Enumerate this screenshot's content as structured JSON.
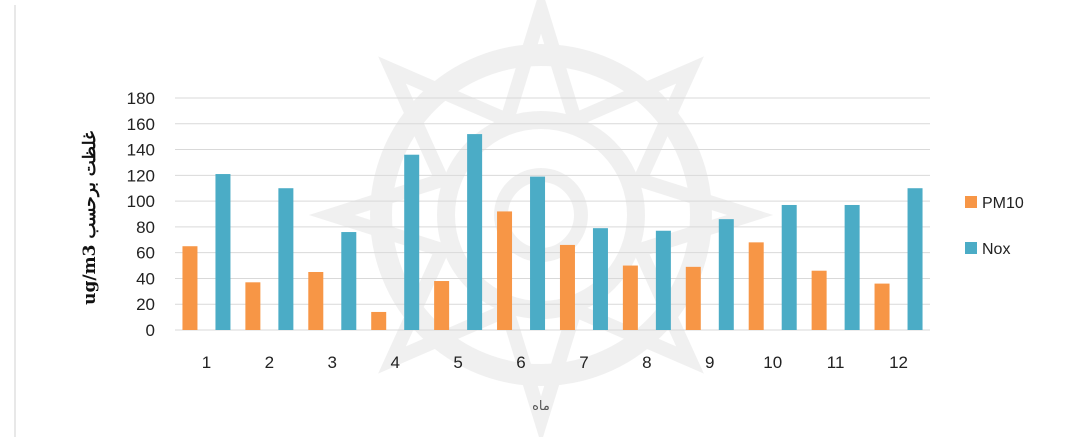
{
  "chart_data": {
    "type": "bar",
    "categories": [
      "1",
      "2",
      "3",
      "4",
      "5",
      "6",
      "7",
      "8",
      "9",
      "10",
      "11",
      "12"
    ],
    "series": [
      {
        "name": "PM10",
        "values": [
          65,
          37,
          45,
          14,
          38,
          92,
          66,
          50,
          49,
          68,
          46,
          36
        ],
        "color": "#F79646"
      },
      {
        "name": "Nox",
        "values": [
          121,
          110,
          76,
          136,
          152,
          119,
          79,
          77,
          86,
          97,
          97,
          110
        ],
        "color": "#4BACC6"
      }
    ],
    "yticks": [
      "0",
      "20",
      "40",
      "60",
      "80",
      "100",
      "120",
      "140",
      "160",
      "180"
    ],
    "ylim": [
      0,
      180
    ],
    "xlabel": "ماه",
    "ylabel": "ug/m3 غلظت برحسب",
    "grid": true,
    "legend_position": "right"
  }
}
